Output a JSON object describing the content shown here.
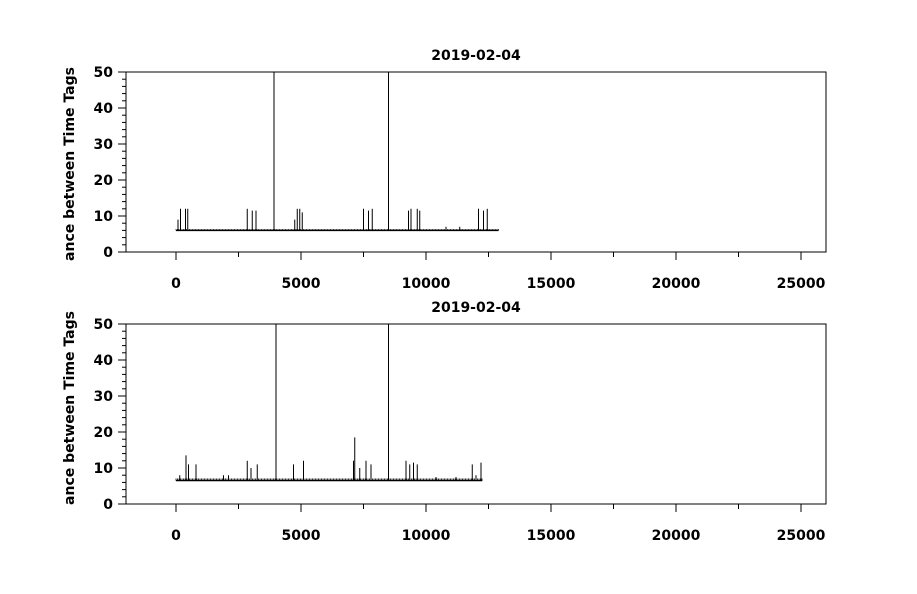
{
  "chart_data": [
    {
      "type": "line",
      "title": "2019-02-04",
      "ylabel": "ance between Time Tags",
      "xlabel": "",
      "xlim": [
        -2000,
        26000
      ],
      "ylim": [
        0,
        50
      ],
      "x_ticks": [
        0,
        5000,
        10000,
        15000,
        20000,
        25000
      ],
      "y_ticks": [
        0,
        10,
        20,
        30,
        40,
        50
      ],
      "grid": false,
      "color": "#000000",
      "baseline": {
        "x": [
          0,
          12900
        ],
        "y": 6
      },
      "spikes": [
        {
          "x": 80,
          "y": 9
        },
        {
          "x": 180,
          "y": 12
        },
        {
          "x": 380,
          "y": 12
        },
        {
          "x": 470,
          "y": 12
        },
        {
          "x": 2850,
          "y": 12
        },
        {
          "x": 3050,
          "y": 11.5
        },
        {
          "x": 3200,
          "y": 11.5
        },
        {
          "x": 3920,
          "y": 50
        },
        {
          "x": 4750,
          "y": 9
        },
        {
          "x": 4850,
          "y": 12
        },
        {
          "x": 4950,
          "y": 12
        },
        {
          "x": 5050,
          "y": 11
        },
        {
          "x": 7500,
          "y": 12
        },
        {
          "x": 7700,
          "y": 11.5
        },
        {
          "x": 7850,
          "y": 12
        },
        {
          "x": 8500,
          "y": 50
        },
        {
          "x": 9300,
          "y": 11.5
        },
        {
          "x": 9400,
          "y": 12
        },
        {
          "x": 9650,
          "y": 12
        },
        {
          "x": 9750,
          "y": 11.5
        },
        {
          "x": 10800,
          "y": 7
        },
        {
          "x": 11350,
          "y": 7
        },
        {
          "x": 12100,
          "y": 12
        },
        {
          "x": 12300,
          "y": 11.5
        },
        {
          "x": 12450,
          "y": 12
        }
      ]
    },
    {
      "type": "line",
      "title": "2019-02-04",
      "ylabel": "ance between Time Tags",
      "xlabel": "",
      "xlim": [
        -2000,
        26000
      ],
      "ylim": [
        0,
        50
      ],
      "x_ticks": [
        0,
        5000,
        10000,
        15000,
        20000,
        25000
      ],
      "y_ticks": [
        0,
        10,
        20,
        30,
        40,
        50
      ],
      "grid": false,
      "color": "#000000",
      "baseline": {
        "x": [
          0,
          12250
        ],
        "y": 6.5
      },
      "spikes": [
        {
          "x": 150,
          "y": 8
        },
        {
          "x": 400,
          "y": 13.5
        },
        {
          "x": 500,
          "y": 11
        },
        {
          "x": 800,
          "y": 11
        },
        {
          "x": 1900,
          "y": 8
        },
        {
          "x": 2100,
          "y": 8
        },
        {
          "x": 2850,
          "y": 12
        },
        {
          "x": 3000,
          "y": 10
        },
        {
          "x": 3250,
          "y": 11
        },
        {
          "x": 4000,
          "y": 50
        },
        {
          "x": 4700,
          "y": 11
        },
        {
          "x": 5100,
          "y": 12
        },
        {
          "x": 7100,
          "y": 12
        },
        {
          "x": 7150,
          "y": 18.5
        },
        {
          "x": 7350,
          "y": 10
        },
        {
          "x": 7600,
          "y": 12
        },
        {
          "x": 7800,
          "y": 11
        },
        {
          "x": 8500,
          "y": 50
        },
        {
          "x": 9200,
          "y": 12
        },
        {
          "x": 9350,
          "y": 11
        },
        {
          "x": 9500,
          "y": 11.5
        },
        {
          "x": 9650,
          "y": 11
        },
        {
          "x": 10400,
          "y": 7.5
        },
        {
          "x": 11200,
          "y": 7.5
        },
        {
          "x": 11850,
          "y": 11
        },
        {
          "x": 12000,
          "y": 8
        },
        {
          "x": 12200,
          "y": 11.5
        }
      ]
    }
  ]
}
